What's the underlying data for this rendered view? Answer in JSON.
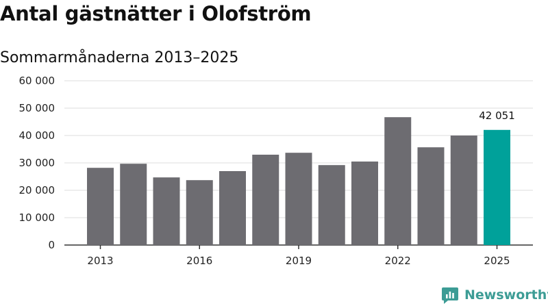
{
  "title": "Antal gästnätter i Olofström",
  "subtitle": "Sommarmånaderna 2013–2025",
  "brand": {
    "name": "Newsworthy",
    "logo_icon": "newsworthy-logo-icon",
    "color": "#3c9c95"
  },
  "colors": {
    "bar": "#6d6c71",
    "highlight": "#00a19a",
    "grid": "#dddddd",
    "axis": "#333333"
  },
  "chart_data": {
    "type": "bar",
    "title": "Antal gästnätter i Olofström",
    "subtitle": "Sommarmånaderna 2013–2025",
    "xlabel": "",
    "ylabel": "",
    "categories": [
      "2013",
      "2014",
      "2015",
      "2016",
      "2017",
      "2018",
      "2019",
      "2020",
      "2021",
      "2022",
      "2023",
      "2024",
      "2025"
    ],
    "values": [
      28200,
      29700,
      24700,
      23700,
      27000,
      33000,
      33700,
      29200,
      30500,
      46700,
      35700,
      40000,
      42051
    ],
    "highlight_index": 12,
    "highlight_label": "42 051",
    "ylim": [
      0,
      60000
    ],
    "yticks": [
      0,
      10000,
      20000,
      30000,
      40000,
      50000,
      60000
    ],
    "ytick_labels": [
      "0",
      "10 000",
      "20 000",
      "30 000",
      "40 000",
      "50 000",
      "60 000"
    ],
    "xtick_labels": [
      "2013",
      "2016",
      "2019",
      "2022",
      "2025"
    ],
    "grid": true,
    "legend": "none"
  }
}
